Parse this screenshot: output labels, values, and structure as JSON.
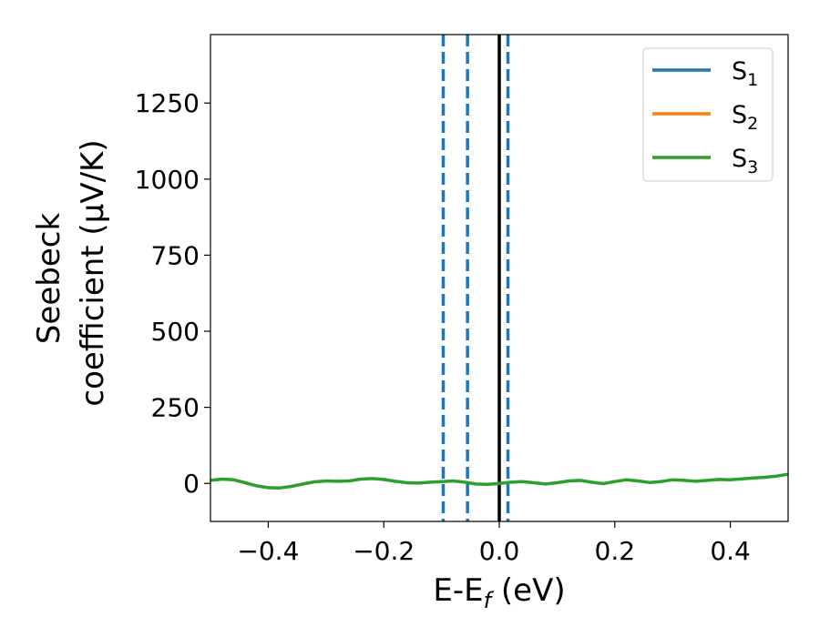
{
  "chart_data": {
    "type": "line",
    "xlabel": "E-E",
    "xlabel_sub": "f",
    "xlabel_unit": " (eV)",
    "ylabel_line1": "Seebeck",
    "ylabel_line2": "coefficient  (μV/K)",
    "xlim": [
      -0.5,
      0.5
    ],
    "ylim": [
      -125,
      1475
    ],
    "xticks": [
      -0.4,
      -0.2,
      0.0,
      0.2,
      0.4
    ],
    "xtick_labels": [
      "−0.4",
      "−0.2",
      "0.0",
      "0.2",
      "0.4"
    ],
    "yticks": [
      0,
      250,
      500,
      750,
      1000,
      1250
    ],
    "ytick_labels": [
      "0",
      "250",
      "500",
      "750",
      "1000",
      "1250"
    ],
    "grid": false,
    "legend_position": "top-right",
    "series": [
      {
        "name": "S",
        "sub": "1",
        "color": "#1f77b4",
        "x": [],
        "y": []
      },
      {
        "name": "S",
        "sub": "2",
        "color": "#ff7f0e",
        "x": [],
        "y": []
      },
      {
        "name": "S",
        "sub": "3",
        "color": "#2ca02c",
        "x": [
          -0.5,
          -0.48,
          -0.46,
          -0.44,
          -0.42,
          -0.4,
          -0.38,
          -0.36,
          -0.34,
          -0.32,
          -0.3,
          -0.28,
          -0.26,
          -0.24,
          -0.22,
          -0.2,
          -0.18,
          -0.16,
          -0.14,
          -0.12,
          -0.1,
          -0.08,
          -0.06,
          -0.04,
          -0.02,
          0.0,
          0.02,
          0.04,
          0.06,
          0.08,
          0.1,
          0.12,
          0.14,
          0.16,
          0.18,
          0.2,
          0.22,
          0.24,
          0.26,
          0.28,
          0.3,
          0.32,
          0.34,
          0.36,
          0.38,
          0.4,
          0.42,
          0.44,
          0.46,
          0.48,
          0.5
        ],
        "y": [
          10,
          14,
          12,
          2,
          -8,
          -14,
          -15,
          -10,
          -2,
          5,
          8,
          7,
          8,
          14,
          16,
          13,
          7,
          2,
          1,
          4,
          6,
          8,
          4,
          -2,
          -3,
          0,
          4,
          6,
          2,
          -2,
          2,
          8,
          10,
          4,
          -1,
          6,
          12,
          8,
          3,
          6,
          12,
          10,
          7,
          10,
          13,
          12,
          15,
          18,
          20,
          24,
          30
        ]
      }
    ],
    "vlines": [
      {
        "x": -0.097,
        "style": "dashed",
        "color": "#1f77b4"
      },
      {
        "x": -0.055,
        "style": "dashed",
        "color": "#1f77b4"
      },
      {
        "x": 0.0,
        "style": "solid",
        "color": "#000000"
      },
      {
        "x": 0.015,
        "style": "dashed",
        "color": "#1f77b4"
      }
    ]
  }
}
